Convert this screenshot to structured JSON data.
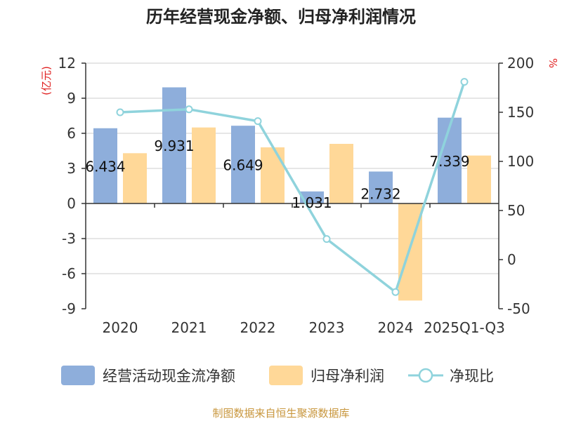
{
  "chart_data": {
    "type": "bar",
    "title": "历年经营现金净额、归母净利润情况",
    "categories": [
      "2020",
      "2021",
      "2022",
      "2023",
      "2024",
      "2025Q1-Q3"
    ],
    "series": [
      {
        "name": "经营活动现金流净额",
        "kind": "bar",
        "axis": "left",
        "color": "#8eaedb",
        "values": [
          6.434,
          9.931,
          6.649,
          1.031,
          2.732,
          7.339
        ]
      },
      {
        "name": "归母净利润",
        "kind": "bar",
        "axis": "left",
        "color": "#ffd898",
        "values": [
          4.3,
          6.5,
          4.8,
          5.1,
          -8.3,
          4.1
        ]
      },
      {
        "name": "净现比",
        "kind": "line",
        "axis": "right",
        "color": "#8fd3dc",
        "values": [
          150,
          153,
          141,
          21,
          -33,
          181
        ]
      }
    ],
    "data_labels": [
      "6.434",
      "9.931",
      "6.649",
      "1.031",
      "2.732",
      "7.339"
    ],
    "left_axis": {
      "unit": "(亿元)",
      "ylim": [
        -9,
        12
      ],
      "ticks": [
        12,
        9,
        6,
        3,
        0,
        -3,
        -6,
        -9
      ]
    },
    "right_axis": {
      "unit": "%",
      "ylim": [
        -50,
        200
      ],
      "ticks": [
        200,
        150,
        100,
        50,
        0,
        -50
      ]
    },
    "grid": true,
    "legend_position": "bottom"
  },
  "footer": {
    "source": "制图数据来自恒生聚源数据库"
  }
}
